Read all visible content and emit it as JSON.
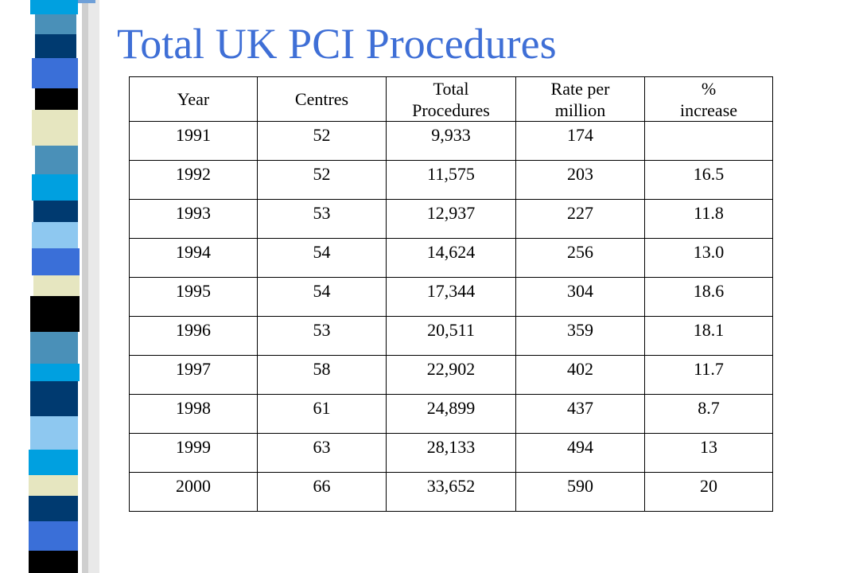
{
  "slide": {
    "title": "Total UK PCI Procedures"
  },
  "table": {
    "headers": [
      [
        "Year"
      ],
      [
        "Centres"
      ],
      [
        "Total",
        "Procedures"
      ],
      [
        "Rate per",
        "million"
      ],
      [
        "%",
        "increase"
      ]
    ],
    "rows": [
      [
        "1991",
        "52",
        "9,933",
        "174",
        ""
      ],
      [
        "1992",
        "52",
        "11,575",
        "203",
        "16.5"
      ],
      [
        "1993",
        "53",
        "12,937",
        "227",
        "11.8"
      ],
      [
        "1994",
        "54",
        "14,624",
        "256",
        "13.0"
      ],
      [
        "1995",
        "54",
        "17,344",
        "304",
        "18.6"
      ],
      [
        "1996",
        "53",
        "20,511",
        "359",
        "18.1"
      ],
      [
        "1997",
        "58",
        "22,902",
        "402",
        "11.7"
      ],
      [
        "1998",
        "61",
        "24,899",
        "437",
        "8.7"
      ],
      [
        "1999",
        "63",
        "28,133",
        "494",
        "13"
      ],
      [
        "2000",
        "66",
        "33,652",
        "590",
        "20"
      ]
    ]
  },
  "theme": {
    "title_color": "#3f6fd6",
    "bar_colors": [
      "#00a0e0",
      "#4a90b8",
      "#003a70",
      "#3a6fd8",
      "#000000",
      "#e6e6c0",
      "#8ec8f0",
      "#ffffff"
    ]
  }
}
